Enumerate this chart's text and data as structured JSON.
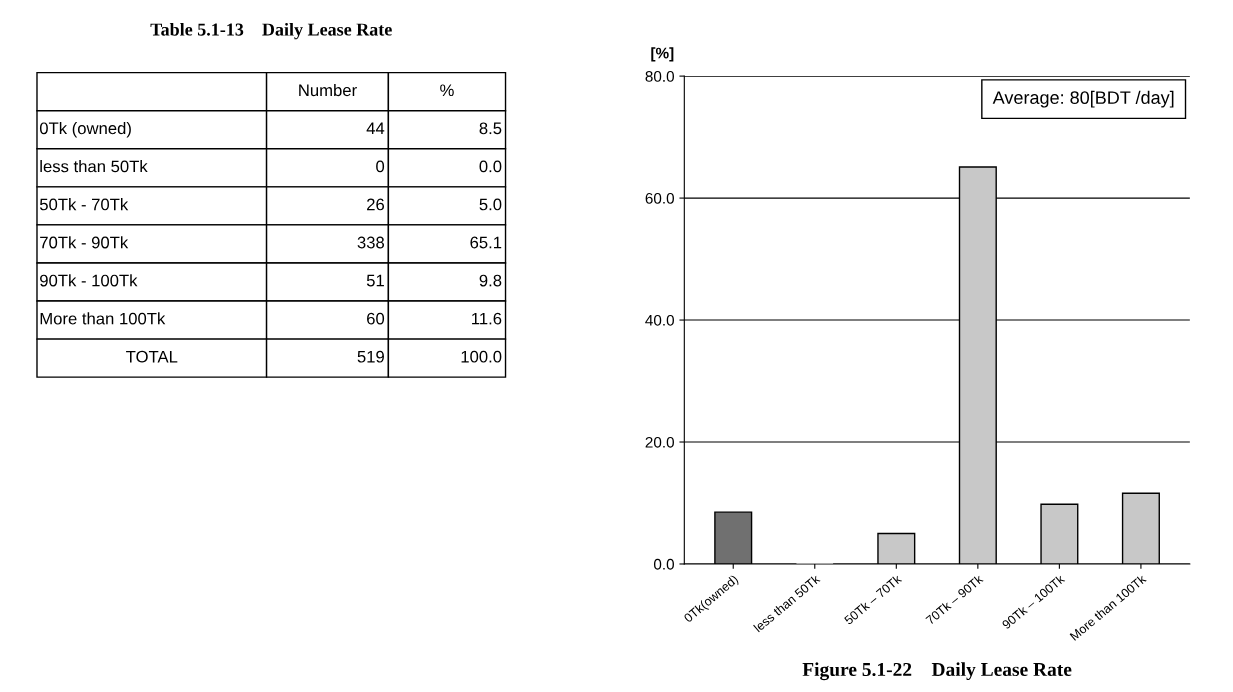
{
  "chart_data": [
    {
      "type": "other",
      "data_labels": true,
      "title": "Table 5.1-13    Daily Lease Rate",
      "categories": [
        "0Tk (owned)",
        "less than 50Tk",
        "50Tk - 70Tk",
        "70Tk - 90Tk",
        "90Tk - 100Tk",
        "More than 100Tk",
        "TOTAL"
      ],
      "series": [
        {
          "name": "Number",
          "values": [
            44,
            0,
            26,
            338,
            51,
            60,
            519
          ]
        },
        {
          "name": "%",
          "values": [
            8.5,
            0.0,
            5.0,
            65.1,
            9.8,
            11.6,
            100.0
          ],
          "value_labels": [
            "8.5",
            "0.0",
            "5.0",
            "65.1",
            "9.8",
            "11.6",
            "100.0"
          ]
        }
      ]
    },
    {
      "type": "bar",
      "title": "Figure 5.1-22    Daily Lease Rate",
      "ylabel": "[%]",
      "categories": [
        "0Tk(owned)",
        "less than 50Tk",
        "50Tk – 70Tk",
        "70Tk – 90Tk",
        "90Tk – 100Tk",
        "More than 100Tk"
      ],
      "values": [
        8.5,
        0.0,
        5.0,
        65.1,
        9.8,
        11.6
      ],
      "colors": [
        "#707070",
        "#c8c8c8",
        "#c8c8c8",
        "#c8c8c8",
        "#c8c8c8",
        "#c8c8c8"
      ],
      "ylim": [
        0,
        80
      ],
      "yticks": [
        {
          "value": 0,
          "label": "0.0"
        },
        {
          "value": 20,
          "label": "20.0"
        },
        {
          "value": 40,
          "label": "40.0"
        },
        {
          "value": 60,
          "label": "60.0"
        },
        {
          "value": 80,
          "label": "80.0"
        }
      ],
      "grid": "y",
      "legend": false,
      "annotations": [
        "Average: 80[BDT /day]"
      ]
    }
  ]
}
